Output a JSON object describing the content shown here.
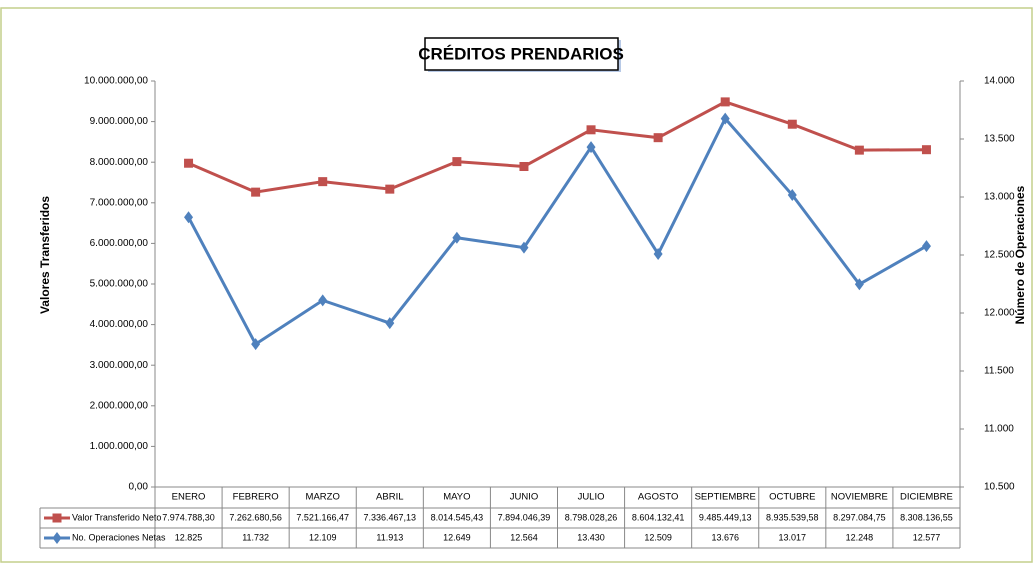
{
  "chart_data": {
    "type": "line",
    "title": "CRÉDITOS PRENDARIOS",
    "y_label": "Valores Transferidos",
    "y2_label": "Número de Operaciones",
    "categories": [
      "ENERO",
      "FEBRERO",
      "MARZO",
      "ABRIL",
      "MAYO",
      "JUNIO",
      "JULIO",
      "AGOSTO",
      "SEPTIEMBRE",
      "OCTUBRE",
      "NOVIEMBRE",
      "DICIEMBRE"
    ],
    "series": [
      {
        "name": "Valor Transferido Neto",
        "color": "#c0504d",
        "marker": "square",
        "values": [
          7974788.3,
          7262680.56,
          7521166.47,
          7336467.13,
          8014545.43,
          7894046.39,
          8798028.26,
          8604132.41,
          9485449.13,
          8935539.58,
          8297084.75,
          8308136.55
        ],
        "value_labels": [
          "7.974.788,30",
          "7.262.680,56",
          "7.521.166,47",
          "7.336.467,13",
          "8.014.545,43",
          "7.894.046,39",
          "8.798.028,26",
          "8.604.132,41",
          "9.485.449,13",
          "8.935.539,58",
          "8.297.084,75",
          "8.308.136,55"
        ]
      },
      {
        "name": "No. Operaciones Netas",
        "color": "#4f81bd",
        "marker": "diamond",
        "axis": "y2",
        "values": [
          12825,
          11732,
          12109,
          11913,
          12649,
          12564,
          13430,
          12509,
          13676,
          13017,
          12248,
          12577
        ],
        "value_labels": [
          "12.825",
          "11.732",
          "12.109",
          "11.913",
          "12.649",
          "12.564",
          "13.430",
          "12.509",
          "13.676",
          "13.017",
          "12.248",
          "12.577"
        ]
      }
    ],
    "ylim": [
      0,
      10000000
    ],
    "yticks": [
      {
        "value": 0,
        "label": "0,00"
      },
      {
        "value": 1000000,
        "label": "1.000.000,00"
      },
      {
        "value": 2000000,
        "label": "2.000.000,00"
      },
      {
        "value": 3000000,
        "label": "3.000.000,00"
      },
      {
        "value": 4000000,
        "label": "4.000.000,00"
      },
      {
        "value": 5000000,
        "label": "5.000.000,00"
      },
      {
        "value": 6000000,
        "label": "6.000.000,00"
      },
      {
        "value": 7000000,
        "label": "7.000.000,00"
      },
      {
        "value": 8000000,
        "label": "8.000.000,00"
      },
      {
        "value": 9000000,
        "label": "9.000.000,00"
      },
      {
        "value": 10000000,
        "label": "10.000.000,00"
      }
    ],
    "y2lim": [
      10500,
      14000
    ],
    "y2ticks": [
      {
        "value": 10500,
        "label": "10.500"
      },
      {
        "value": 11000,
        "label": "11.000"
      },
      {
        "value": 11500,
        "label": "11.500"
      },
      {
        "value": 12000,
        "label": "12.000"
      },
      {
        "value": 12500,
        "label": "12.500"
      },
      {
        "value": 13000,
        "label": "13.000"
      },
      {
        "value": 13500,
        "label": "13.500"
      },
      {
        "value": 14000,
        "label": "14.000"
      }
    ],
    "grid": false
  }
}
